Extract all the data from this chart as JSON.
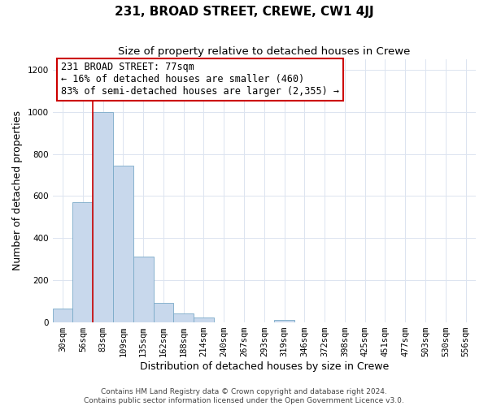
{
  "title": "231, BROAD STREET, CREWE, CW1 4JJ",
  "subtitle": "Size of property relative to detached houses in Crewe",
  "xlabel": "Distribution of detached houses by size in Crewe",
  "ylabel": "Number of detached properties",
  "bar_labels": [
    "30sqm",
    "56sqm",
    "83sqm",
    "109sqm",
    "135sqm",
    "162sqm",
    "188sqm",
    "214sqm",
    "240sqm",
    "267sqm",
    "293sqm",
    "319sqm",
    "346sqm",
    "372sqm",
    "398sqm",
    "425sqm",
    "451sqm",
    "477sqm",
    "503sqm",
    "530sqm",
    "556sqm"
  ],
  "bar_values": [
    65,
    570,
    1000,
    745,
    310,
    90,
    42,
    20,
    0,
    0,
    0,
    10,
    0,
    0,
    0,
    0,
    0,
    0,
    0,
    0,
    0
  ],
  "bar_color": "#c8d8ec",
  "bar_edge_color": "#7aaac8",
  "grid_color": "#dce4f0",
  "vline_color": "#cc0000",
  "annotation_title": "231 BROAD STREET: 77sqm",
  "annotation_line1": "← 16% of detached houses are smaller (460)",
  "annotation_line2": "83% of semi-detached houses are larger (2,355) →",
  "ylim": [
    0,
    1250
  ],
  "yticks": [
    0,
    200,
    400,
    600,
    800,
    1000,
    1200
  ],
  "title_fontsize": 11,
  "subtitle_fontsize": 9.5,
  "axis_label_fontsize": 9,
  "tick_fontsize": 7.5,
  "annotation_fontsize": 8.5,
  "footer_fontsize": 6.5,
  "footer1": "Contains HM Land Registry data © Crown copyright and database right 2024.",
  "footer2": "Contains public sector information licensed under the Open Government Licence v3.0."
}
